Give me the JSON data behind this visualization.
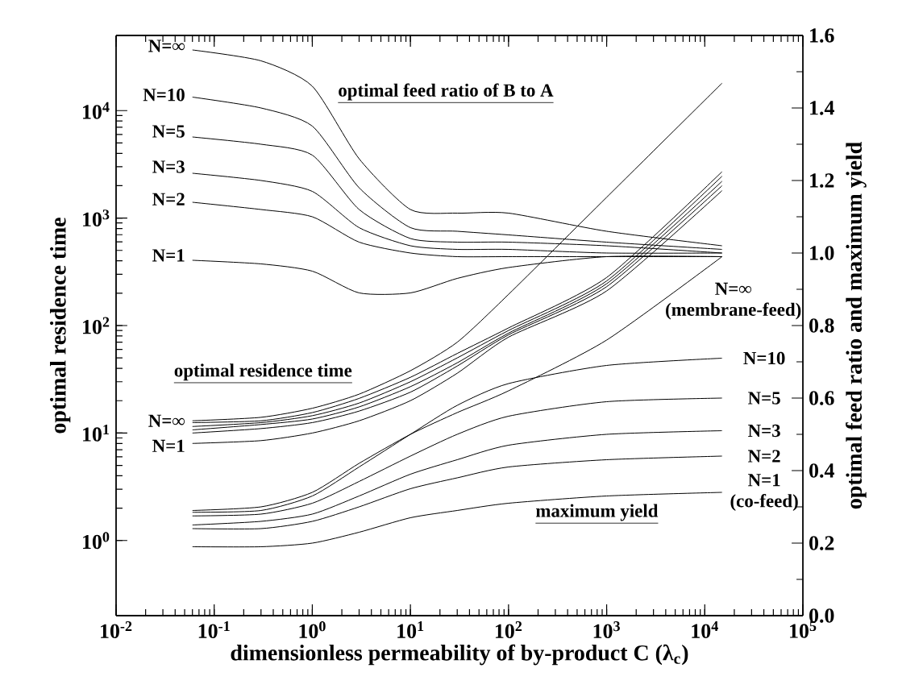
{
  "chart_data": {
    "type": "line",
    "xlabel": "dimensionless permeability of by-product C (λ$_{c}$)",
    "ylabel": "optimal residence time",
    "y2label": "optimal feed ratio and maximum yield",
    "log": "xy",
    "x": [
      0.06,
      0.3,
      1,
      3,
      10,
      30,
      100,
      1000,
      15000
    ],
    "xlim": [
      0.01,
      100000
    ],
    "ylim": [
      0.2,
      50000
    ],
    "y2lim": [
      0,
      1.6
    ],
    "xticks": [
      {
        "value": 0.01,
        "label": "10$^{-2}$"
      },
      {
        "value": 0.1,
        "label": "10$^{-1}$"
      },
      {
        "value": 1,
        "label": "10$^{0}$"
      },
      {
        "value": 10,
        "label": "10$^{1}$"
      },
      {
        "value": 100,
        "label": "10$^{2}$"
      },
      {
        "value": 1000,
        "label": "10$^{3}$"
      },
      {
        "value": 10000,
        "label": "10$^{4}$"
      },
      {
        "value": 100000,
        "label": "10$^{5}$"
      }
    ],
    "yticks": [
      {
        "value": 1,
        "label": "10$^{0}$"
      },
      {
        "value": 10,
        "label": "10$^{1}$"
      },
      {
        "value": 100,
        "label": "10$^{2}$"
      },
      {
        "value": 1000,
        "label": "10$^{3}$"
      },
      {
        "value": 10000,
        "label": "10$^{4}$"
      }
    ],
    "y2ticks": [
      {
        "value": 0,
        "label": "0.0"
      },
      {
        "value": 0.2,
        "label": "0.2"
      },
      {
        "value": 0.4,
        "label": "0.4"
      },
      {
        "value": 0.6,
        "label": "0.6"
      },
      {
        "value": 0.8,
        "label": "0.8"
      },
      {
        "value": 1.0,
        "label": "1.0"
      },
      {
        "value": 1.2,
        "label": "1.2"
      },
      {
        "value": 1.4,
        "label": "1.4"
      },
      {
        "value": 1.6,
        "label": "1.6"
      }
    ],
    "series": [
      {
        "color": "#000000",
        "axis": "y2",
        "values": [
          1.56,
          1.53,
          1.46,
          1.26,
          1.12,
          1.11,
          1.11,
          1.06,
          1.02
        ]
      },
      {
        "color": "#000000",
        "axis": "y2",
        "values": [
          1.43,
          1.4,
          1.35,
          1.18,
          1.07,
          1.06,
          1.05,
          1.03,
          1.01
        ]
      },
      {
        "color": "#000000",
        "axis": "y2",
        "values": [
          1.32,
          1.3,
          1.27,
          1.12,
          1.04,
          1.03,
          1.03,
          1.02,
          1.0
        ]
      },
      {
        "color": "#000000",
        "axis": "y2",
        "values": [
          1.22,
          1.2,
          1.17,
          1.07,
          1.02,
          1.01,
          1.01,
          1.0,
          1.0
        ]
      },
      {
        "color": "#000000",
        "axis": "y2",
        "values": [
          1.14,
          1.12,
          1.1,
          1.03,
          1.0,
          0.99,
          0.99,
          0.99,
          0.99
        ]
      },
      {
        "color": "#000000",
        "axis": "y2",
        "values": [
          0.98,
          0.97,
          0.95,
          0.89,
          0.89,
          0.93,
          0.96,
          0.99,
          0.99
        ]
      },
      {
        "color": "#000000",
        "axis": "y",
        "values": [
          13,
          14,
          17,
          23,
          38,
          70,
          195,
          1560,
          18000
        ]
      },
      {
        "color": "#000000",
        "axis": "y",
        "values": [
          12.5,
          13,
          15.5,
          21,
          33,
          55,
          95,
          280,
          2700
        ]
      },
      {
        "color": "#000000",
        "axis": "y",
        "values": [
          11.5,
          12.5,
          14.5,
          19,
          30,
          50,
          90,
          260,
          2450
        ]
      },
      {
        "color": "#000000",
        "axis": "y",
        "values": [
          10.7,
          12,
          13.5,
          17.5,
          27,
          45,
          85,
          245,
          2200
        ]
      },
      {
        "color": "#000000",
        "axis": "y",
        "values": [
          10,
          11,
          12.5,
          16,
          24,
          42,
          82,
          230,
          2000
        ]
      },
      {
        "color": "#000000",
        "axis": "y",
        "values": [
          8,
          8.5,
          10,
          13,
          20,
          36,
          78,
          210,
          1800
        ]
      },
      {
        "color": "#000000",
        "axis": "y2",
        "values": [
          0.29,
          0.3,
          0.34,
          0.42,
          0.5,
          0.56,
          0.62,
          0.76,
          0.99
        ]
      },
      {
        "color": "#000000",
        "axis": "y2",
        "values": [
          0.285,
          0.29,
          0.33,
          0.41,
          0.5,
          0.58,
          0.64,
          0.69,
          0.71
        ]
      },
      {
        "color": "#000000",
        "axis": "y2",
        "values": [
          0.275,
          0.28,
          0.31,
          0.37,
          0.44,
          0.5,
          0.55,
          0.59,
          0.6
        ]
      },
      {
        "color": "#000000",
        "axis": "y2",
        "values": [
          0.25,
          0.26,
          0.28,
          0.33,
          0.39,
          0.43,
          0.47,
          0.5,
          0.51
        ]
      },
      {
        "color": "#000000",
        "axis": "y2",
        "values": [
          0.24,
          0.24,
          0.26,
          0.3,
          0.35,
          0.38,
          0.41,
          0.43,
          0.44
        ]
      },
      {
        "color": "#000000",
        "axis": "y2",
        "values": [
          0.19,
          0.19,
          0.2,
          0.23,
          0.27,
          0.29,
          0.31,
          0.33,
          0.34
        ]
      }
    ],
    "annotations": [
      "optimal feed ratio of B to A",
      "optimal residence time",
      "maximum yield",
      {
        "text": "N=∞",
        "x": 0.055,
        "y": 40000
      },
      {
        "text": "N=10",
        "x": 0.055,
        "y": 14000
      },
      {
        "text": "N=5",
        "x": 0.055,
        "y": 6400
      },
      {
        "text": "N=3",
        "x": 0.055,
        "y": 3000
      },
      {
        "text": "N=2",
        "x": 0.055,
        "y": 1500
      },
      {
        "text": "N=1",
        "x": 0.055,
        "y": 450
      },
      {
        "text": "N=∞",
        "x": 0.055,
        "y": 13
      },
      {
        "text": "N=1",
        "x": 0.055,
        "y": 7.6
      },
      {
        "text": "N=∞ (membrane-feed)",
        "x": 9100,
        "y": 321
      },
      {
        "text": "N=10",
        "x": 15000,
        "y": 49.7
      },
      {
        "text": "N=5",
        "x": 15000,
        "y": 21.1
      },
      {
        "text": "N=3",
        "x": 15000,
        "y": 10.5
      },
      {
        "text": "N=2",
        "x": 15000,
        "y": 6.1
      },
      {
        "text": "N=1 (co-feed)",
        "x": 15000,
        "y": 2.8
      }
    ]
  }
}
